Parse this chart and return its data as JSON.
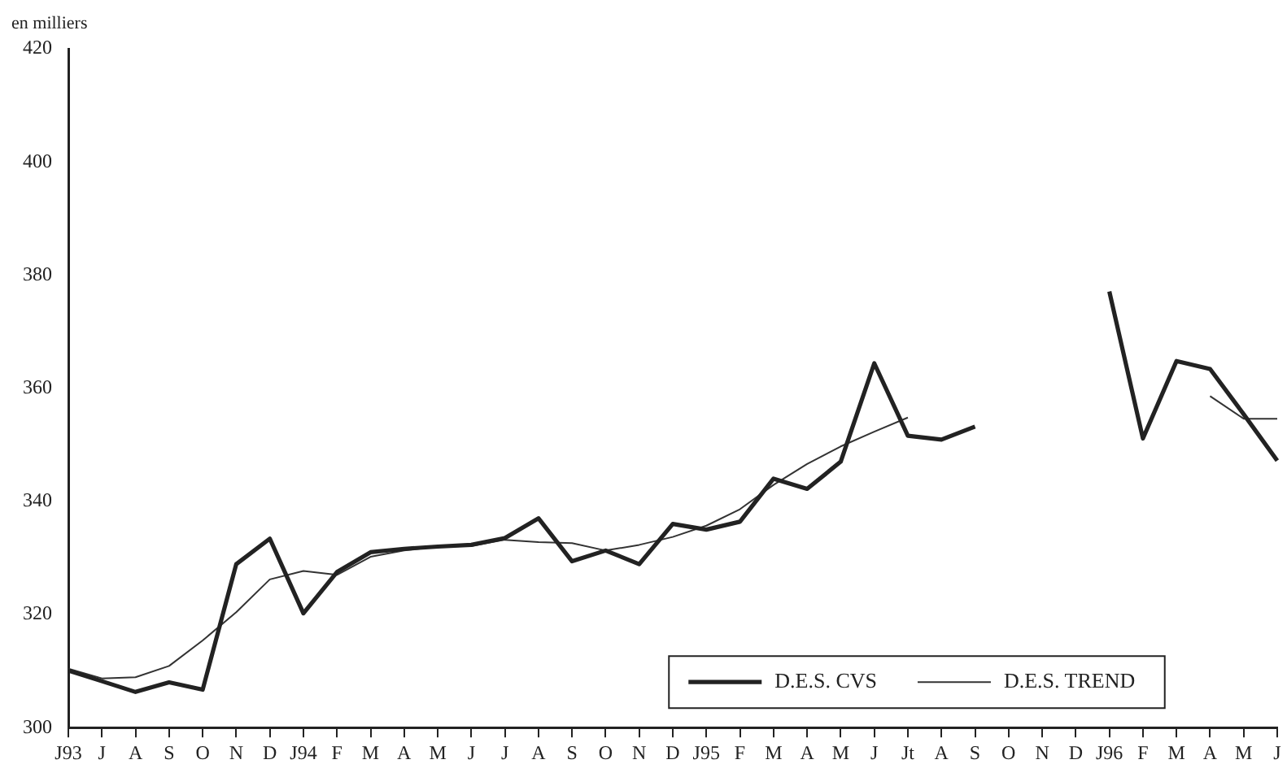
{
  "chart_data": {
    "type": "line",
    "ylabel": "en milliers",
    "categories": [
      "J93",
      "J",
      "A",
      "S",
      "O",
      "N",
      "D",
      "J94",
      "F",
      "M",
      "A",
      "M",
      "J",
      "J",
      "A",
      "S",
      "O",
      "N",
      "D",
      "J95",
      "F",
      "M",
      "A",
      "M",
      "J",
      "Jt",
      "A",
      "S",
      "O",
      "N",
      "D",
      "J96",
      "F",
      "M",
      "A",
      "M",
      "J"
    ],
    "series": [
      {
        "name": "D.E.S. CVS",
        "color": "#222222",
        "values": [
          310.1,
          308.2,
          306.3,
          308,
          306.7,
          328.9,
          333.4,
          320.2,
          327.5,
          331,
          331.6,
          332,
          332.3,
          333.5,
          337,
          329.4,
          331.3,
          328.9,
          336,
          335,
          336.4,
          344,
          342.2,
          347,
          364.4,
          351.6,
          350.9,
          353.2,
          null,
          null,
          null,
          377.1,
          351.1,
          364.8,
          363.4,
          355.4,
          347.2
        ]
      },
      {
        "name": "D.E.S. TREND",
        "color": "#333333",
        "values": [
          310.4,
          308.7,
          308.9,
          310.9,
          315.4,
          320.4,
          326.2,
          327.7,
          327,
          330.2,
          331.3,
          332,
          332.1,
          333.2,
          332.8,
          332.6,
          331.3,
          332.3,
          333.7,
          335.7,
          338.6,
          342.9,
          346.6,
          349.7,
          352.3,
          354.8,
          null,
          null,
          null,
          null,
          null,
          null,
          null,
          null,
          358.6,
          354.6,
          354.6
        ]
      }
    ],
    "ylim": [
      300,
      420
    ],
    "yticks": [
      300,
      320,
      340,
      360,
      380,
      400,
      420
    ],
    "grid": false,
    "legend": "bottom",
    "marker": "none",
    "line_style": "solid"
  }
}
